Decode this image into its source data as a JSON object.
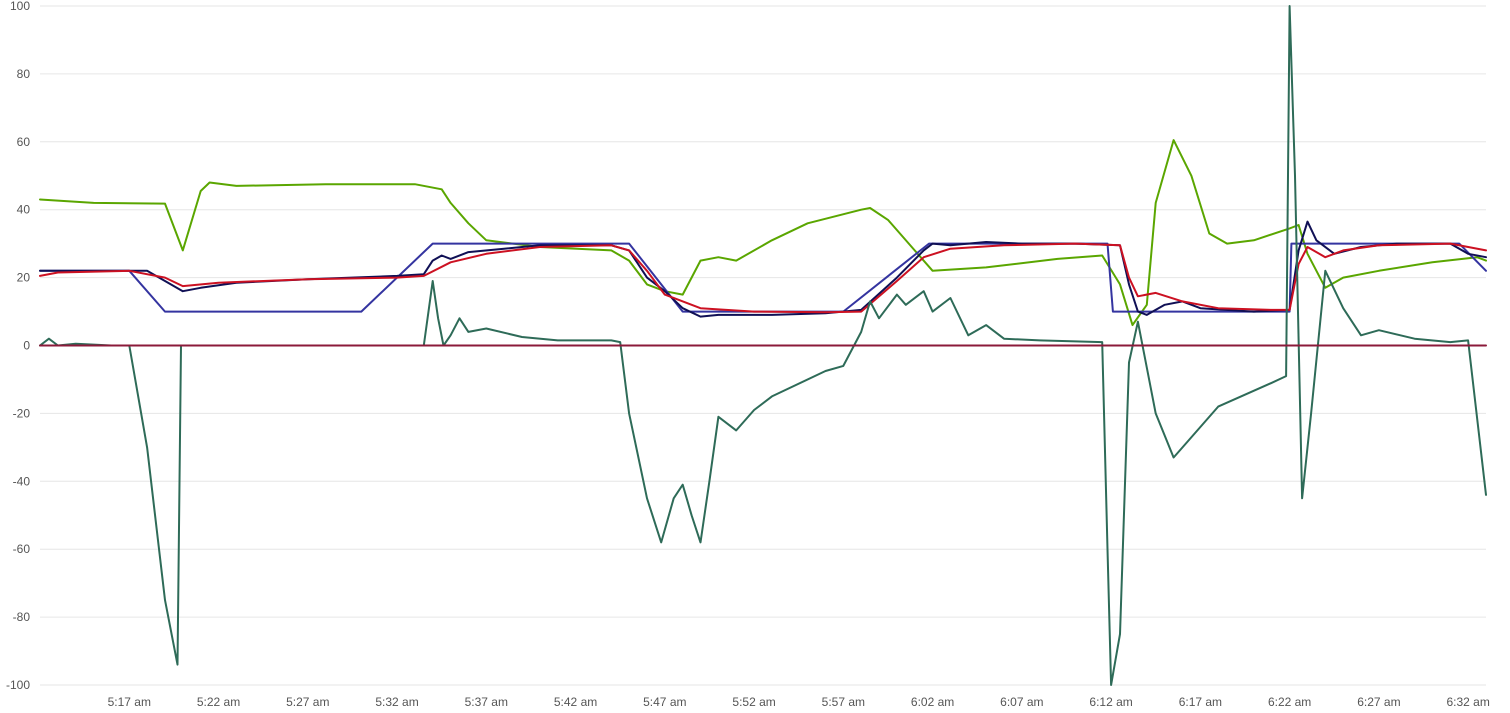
{
  "chart_data": {
    "type": "line",
    "x_domain": [
      "5:12 am",
      "6:33 am"
    ],
    "ylim": [
      -100,
      100
    ],
    "y_ticks": [
      100,
      80,
      60,
      40,
      20,
      0,
      -20,
      -40,
      -60,
      -80,
      -100
    ],
    "x_ticks": [
      "5:17 am",
      "5:22 am",
      "5:27 am",
      "5:32 am",
      "5:37 am",
      "5:42 am",
      "5:47 am",
      "5:52 am",
      "5:57 am",
      "6:02 am",
      "6:07 am",
      "6:12 am",
      "6:17 am",
      "6:22 am",
      "6:27 am",
      "6:32 am"
    ],
    "grid": true,
    "legend": "none",
    "title": "",
    "xlabel": "",
    "ylabel": "",
    "series": [
      {
        "color": "#5aa600",
        "points": [
          [
            "5:12 am",
            43
          ],
          [
            "5:15 am",
            42
          ],
          [
            "5:19 am",
            41.8
          ],
          [
            "5:20 am",
            28
          ],
          [
            "5:21 am",
            45.5
          ],
          [
            "5:21.5 am",
            48
          ],
          [
            "5:23 am",
            47
          ],
          [
            "5:28 am",
            47.5
          ],
          [
            "5:33 am",
            47.5
          ],
          [
            "5:34.5 am",
            46
          ],
          [
            "5:35 am",
            42
          ],
          [
            "5:36 am",
            36
          ],
          [
            "5:37 am",
            31
          ],
          [
            "5:40 am",
            29
          ],
          [
            "5:44 am",
            28
          ],
          [
            "5:45 am",
            25
          ],
          [
            "5:46 am",
            18
          ],
          [
            "5:47 am",
            16
          ],
          [
            "5:48 am",
            15
          ],
          [
            "5:49 am",
            25
          ],
          [
            "5:50 am",
            26
          ],
          [
            "5:51 am",
            25
          ],
          [
            "5:53 am",
            31
          ],
          [
            "5:55 am",
            36
          ],
          [
            "5:58 am",
            40
          ],
          [
            "5:58.5 am",
            40.5
          ],
          [
            "5:59.5 am",
            37
          ],
          [
            "6:01 am",
            28
          ],
          [
            "6:02 am",
            22
          ],
          [
            "6:05 am",
            23
          ],
          [
            "6:09 am",
            25.5
          ],
          [
            "6:11.5 am",
            26.5
          ],
          [
            "6:12.5 am",
            18
          ],
          [
            "6:13.2 am",
            6
          ],
          [
            "6:14 am",
            12
          ],
          [
            "6:14.5 am",
            42
          ],
          [
            "6:15.5 am",
            60.5
          ],
          [
            "6:16.5 am",
            50
          ],
          [
            "6:17.5 am",
            33
          ],
          [
            "6:18.5 am",
            30
          ],
          [
            "6:20 am",
            31
          ],
          [
            "6:22 am",
            34.5
          ],
          [
            "6:22.5 am",
            35.5
          ],
          [
            "6:23 am",
            27
          ],
          [
            "6:24 am",
            17
          ],
          [
            "6:25 am",
            20
          ],
          [
            "6:27 am",
            22
          ],
          [
            "6:30 am",
            24.5
          ],
          [
            "6:32.5 am",
            26
          ],
          [
            "6:33 am",
            25
          ]
        ]
      },
      {
        "color": "#3434a0",
        "points": [
          [
            "5:12 am",
            22
          ],
          [
            "5:17 am",
            22
          ],
          [
            "5:19 am",
            10
          ],
          [
            "5:30 am",
            10
          ],
          [
            "5:34 am",
            30
          ],
          [
            "5:45 am",
            30
          ],
          [
            "5:48 am",
            10
          ],
          [
            "5:57 am",
            10
          ],
          [
            "6:01.8 am",
            30
          ],
          [
            "6:11.8 am",
            30
          ],
          [
            "6:12.1 am",
            10
          ],
          [
            "6:22 am",
            10
          ],
          [
            "6:22.1 am",
            30
          ],
          [
            "6:31.5 am",
            30
          ],
          [
            "6:33 am",
            22
          ]
        ]
      },
      {
        "color": "#101055",
        "points": [
          [
            "5:12 am",
            22
          ],
          [
            "5:18 am",
            22
          ],
          [
            "5:19 am",
            19
          ],
          [
            "5:20 am",
            16
          ],
          [
            "5:21 am",
            17
          ],
          [
            "5:23 am",
            18.5
          ],
          [
            "5:27 am",
            19.5
          ],
          [
            "5:32 am",
            20.5
          ],
          [
            "5:33.5 am",
            21
          ],
          [
            "5:34 am",
            25
          ],
          [
            "5:34.5 am",
            26.5
          ],
          [
            "5:35 am",
            25.5
          ],
          [
            "5:36 am",
            27.5
          ],
          [
            "5:38 am",
            28.5
          ],
          [
            "5:40 am",
            29.5
          ],
          [
            "5:44 am",
            29.5
          ],
          [
            "5:45 am",
            28
          ],
          [
            "5:46 am",
            20
          ],
          [
            "5:47 am",
            16
          ],
          [
            "5:48 am",
            11
          ],
          [
            "5:49 am",
            8.5
          ],
          [
            "5:50 am",
            9
          ],
          [
            "5:53 am",
            9
          ],
          [
            "5:56 am",
            9.5
          ],
          [
            "5:58 am",
            10.5
          ],
          [
            "6:00 am",
            20
          ],
          [
            "6:01.5 am",
            28
          ],
          [
            "6:02 am",
            30
          ],
          [
            "6:03 am",
            29.5
          ],
          [
            "6:05 am",
            30.5
          ],
          [
            "6:07 am",
            30
          ],
          [
            "6:10 am",
            30
          ],
          [
            "6:12.5 am",
            29.5
          ],
          [
            "6:13 am",
            18
          ],
          [
            "6:13.5 am",
            10
          ],
          [
            "6:14 am",
            9
          ],
          [
            "6:15 am",
            12
          ],
          [
            "6:16 am",
            13
          ],
          [
            "6:17 am",
            11
          ],
          [
            "6:20 am",
            10
          ],
          [
            "6:22 am",
            10.5
          ],
          [
            "6:22.5 am",
            28
          ],
          [
            "6:23 am",
            36.5
          ],
          [
            "6:23.5 am",
            31
          ],
          [
            "6:24.5 am",
            27
          ],
          [
            "6:26 am",
            29
          ],
          [
            "6:28 am",
            30
          ],
          [
            "6:31 am",
            30
          ],
          [
            "6:32 am",
            27
          ],
          [
            "6:33 am",
            26
          ]
        ]
      },
      {
        "color": "#cc1122",
        "points": [
          [
            "5:12 am",
            20.5
          ],
          [
            "5:13 am",
            21.5
          ],
          [
            "5:17 am",
            22
          ],
          [
            "5:19 am",
            20
          ],
          [
            "5:20 am",
            17.5
          ],
          [
            "5:22 am",
            18.5
          ],
          [
            "5:27 am",
            19.5
          ],
          [
            "5:32 am",
            20
          ],
          [
            "5:33.5 am",
            20.5
          ],
          [
            "5:35 am",
            24.5
          ],
          [
            "5:37 am",
            27
          ],
          [
            "5:40 am",
            29
          ],
          [
            "5:44 am",
            29.5
          ],
          [
            "5:45 am",
            28
          ],
          [
            "5:46 am",
            22
          ],
          [
            "5:47 am",
            15
          ],
          [
            "5:49 am",
            11
          ],
          [
            "5:52 am",
            10
          ],
          [
            "5:56 am",
            9.8
          ],
          [
            "5:58 am",
            10
          ],
          [
            "6:00 am",
            19
          ],
          [
            "6:01.5 am",
            26
          ],
          [
            "6:03 am",
            28.5
          ],
          [
            "6:06 am",
            29.5
          ],
          [
            "6:10 am",
            30
          ],
          [
            "6:12.5 am",
            29.5
          ],
          [
            "6:13 am",
            20
          ],
          [
            "6:13.5 am",
            14.5
          ],
          [
            "6:14.5 am",
            15.5
          ],
          [
            "6:16 am",
            13
          ],
          [
            "6:18 am",
            11
          ],
          [
            "6:21 am",
            10.5
          ],
          [
            "6:22 am",
            10.5
          ],
          [
            "6:22.5 am",
            24
          ],
          [
            "6:23 am",
            29
          ],
          [
            "6:24 am",
            26
          ],
          [
            "6:25 am",
            28
          ],
          [
            "6:27 am",
            29.5
          ],
          [
            "6:31 am",
            30
          ],
          [
            "6:33 am",
            28
          ]
        ]
      },
      {
        "color": "#2e6b58",
        "points": [
          [
            "5:12 am",
            0
          ],
          [
            "5:12.5 am",
            2
          ],
          [
            "5:13 am",
            0
          ],
          [
            "5:14 am",
            0.5
          ],
          [
            "5:16 am",
            0
          ],
          [
            "5:17 am",
            0
          ],
          [
            "5:18 am",
            -30
          ],
          [
            "5:19 am",
            -75
          ],
          [
            "5:19.7 am",
            -94
          ],
          [
            "5:19.9 am",
            0
          ],
          [
            "5:33.5 am",
            0
          ],
          [
            "5:34 am",
            19
          ],
          [
            "5:34.3 am",
            8
          ],
          [
            "5:34.6 am",
            0
          ],
          [
            "5:35 am",
            3
          ],
          [
            "5:35.5 am",
            8
          ],
          [
            "5:36 am",
            4
          ],
          [
            "5:37 am",
            5
          ],
          [
            "5:39 am",
            2.5
          ],
          [
            "5:41 am",
            1.5
          ],
          [
            "5:44 am",
            1.5
          ],
          [
            "5:44.5 am",
            1
          ],
          [
            "5:45 am",
            -20
          ],
          [
            "5:46 am",
            -45
          ],
          [
            "5:46.8 am",
            -58
          ],
          [
            "5:47.5 am",
            -45
          ],
          [
            "5:48 am",
            -41
          ],
          [
            "5:48.5 am",
            -50
          ],
          [
            "5:49 am",
            -58
          ],
          [
            "5:49.5 am",
            -40
          ],
          [
            "5:50 am",
            -21
          ],
          [
            "5:51 am",
            -25
          ],
          [
            "5:52 am",
            -19
          ],
          [
            "5:53 am",
            -15
          ],
          [
            "5:56 am",
            -7.5
          ],
          [
            "5:57 am",
            -6
          ],
          [
            "5:58 am",
            4
          ],
          [
            "5:58.5 am",
            13
          ],
          [
            "5:59 am",
            8
          ],
          [
            "6:00 am",
            15
          ],
          [
            "6:00.5 am",
            12
          ],
          [
            "6:01.5 am",
            16
          ],
          [
            "6:02 am",
            10
          ],
          [
            "6:03 am",
            14
          ],
          [
            "6:04 am",
            3
          ],
          [
            "6:05 am",
            6
          ],
          [
            "6:06 am",
            2
          ],
          [
            "6:08 am",
            1.5
          ],
          [
            "6:11.5 am",
            1
          ],
          [
            "6:11.8 am",
            -60
          ],
          [
            "6:12 am",
            -100
          ],
          [
            "6:12.5 am",
            -85
          ],
          [
            "6:13 am",
            -5
          ],
          [
            "6:13.5 am",
            7
          ],
          [
            "6:14.5 am",
            -20
          ],
          [
            "6:15.5 am",
            -33
          ],
          [
            "6:16 am",
            -30
          ],
          [
            "6:18 am",
            -18
          ],
          [
            "6:21 am",
            -11
          ],
          [
            "6:21.8 am",
            -9
          ],
          [
            "6:22 am",
            100
          ],
          [
            "6:22.3 am",
            50
          ],
          [
            "6:22.7 am",
            -45
          ],
          [
            "6:23.2 am",
            -20
          ],
          [
            "6:24 am",
            22
          ],
          [
            "6:25 am",
            11
          ],
          [
            "6:26 am",
            3
          ],
          [
            "6:27 am",
            4.5
          ],
          [
            "6:29 am",
            2
          ],
          [
            "6:31 am",
            1
          ],
          [
            "6:32 am",
            1.5
          ],
          [
            "6:33 am",
            -44
          ]
        ]
      },
      {
        "color": "#8b1a3a",
        "points": [
          [
            "5:12 am",
            0
          ],
          [
            "6:33 am",
            0
          ]
        ]
      }
    ]
  }
}
